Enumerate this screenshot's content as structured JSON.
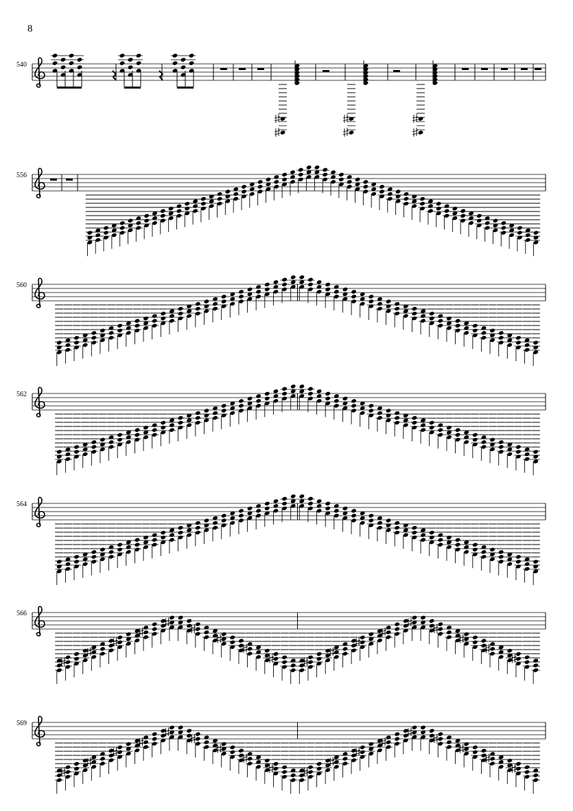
{
  "page_number": "8",
  "systems": [
    {
      "measure_number": "540"
    },
    {
      "measure_number": "556"
    },
    {
      "measure_number": "560"
    },
    {
      "measure_number": "562"
    },
    {
      "measure_number": "564"
    },
    {
      "measure_number": "566"
    },
    {
      "measure_number": "569"
    }
  ]
}
